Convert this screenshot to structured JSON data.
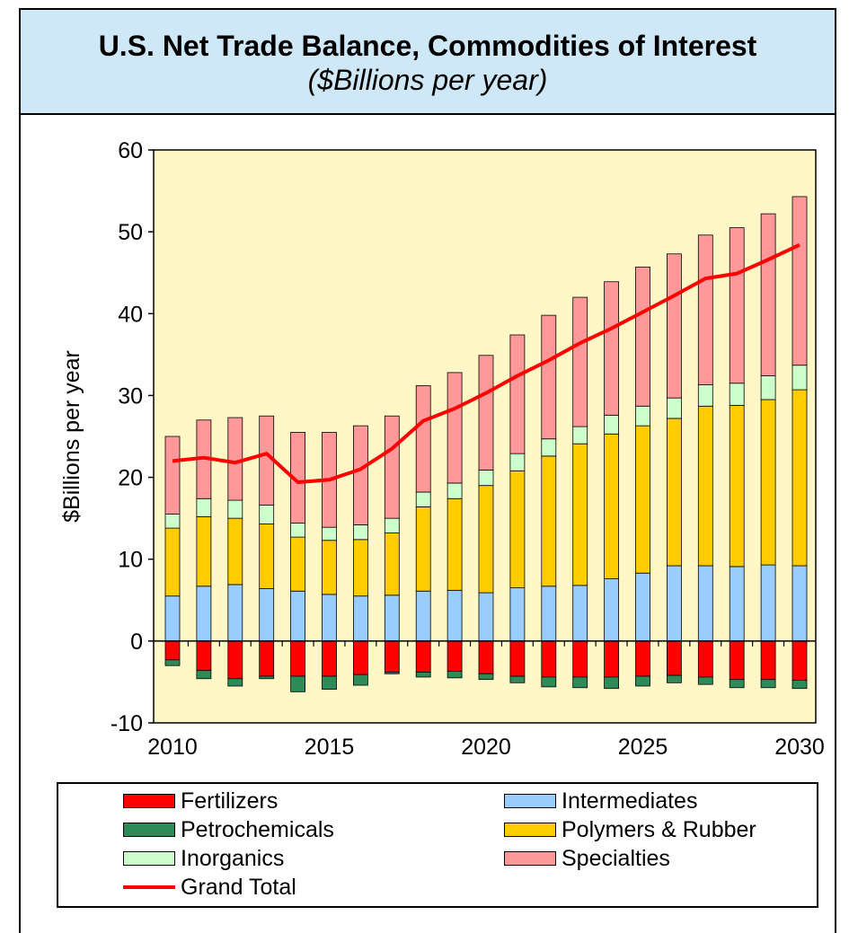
{
  "title": "U.S. Net Trade Balance, Commodities of Interest",
  "subtitle": "($Billions per year)",
  "colors": {
    "plot_bg": "#fff8c6",
    "title_bg": "#cfe8f8",
    "Fertilizers": "#ff0000",
    "Petrochemicals": "#2e8b57",
    "Inorganics": "#ccffcc",
    "Intermediates": "#99ccff",
    "Polymers & Rubber": "#ffcc00",
    "Specialties": "#ff9999",
    "Grand Total": "#ff0000"
  },
  "chart_data": {
    "type": "bar",
    "stacked": true,
    "title": "U.S. Net Trade Balance, Commodities of Interest",
    "subtitle": "($Billions per year)",
    "ylabel": "$Billions per year",
    "ylim": [
      -10,
      60
    ],
    "yticks": [
      -10,
      0,
      10,
      20,
      30,
      40,
      50,
      60
    ],
    "xticks": [
      2010,
      2015,
      2020,
      2025,
      2030
    ],
    "categories": [
      2010,
      2011,
      2012,
      2013,
      2014,
      2015,
      2016,
      2017,
      2018,
      2019,
      2020,
      2021,
      2022,
      2023,
      2024,
      2025,
      2026,
      2027,
      2028,
      2029,
      2030
    ],
    "series": [
      {
        "name": "Fertilizers",
        "values": [
          -2.3,
          -3.6,
          -4.6,
          -4.3,
          -4.3,
          -4.3,
          -4.1,
          -3.8,
          -3.8,
          -3.7,
          -4.0,
          -4.3,
          -4.4,
          -4.4,
          -4.4,
          -4.3,
          -4.2,
          -4.4,
          -4.7,
          -4.7,
          -4.8
        ]
      },
      {
        "name": "Petrochemicals",
        "values": [
          -0.7,
          -1.0,
          -0.9,
          -0.3,
          -1.9,
          -1.6,
          -1.3,
          -0.2,
          -0.6,
          -0.8,
          -0.7,
          -0.8,
          -1.2,
          -1.3,
          -1.4,
          -1.2,
          -0.9,
          -0.9,
          -1.0,
          -1.0,
          -1.0
        ]
      },
      {
        "name": "Intermediates",
        "values": [
          5.5,
          6.7,
          6.9,
          6.4,
          6.1,
          5.7,
          5.5,
          5.6,
          6.1,
          6.2,
          5.9,
          6.5,
          6.7,
          6.8,
          7.6,
          8.3,
          9.2,
          9.2,
          9.1,
          9.3,
          9.2
        ]
      },
      {
        "name": "Polymers & Rubber",
        "values": [
          8.3,
          8.5,
          8.1,
          7.9,
          6.6,
          6.6,
          6.9,
          7.6,
          10.3,
          11.2,
          13.1,
          14.3,
          15.9,
          17.3,
          17.7,
          18.0,
          18.0,
          19.5,
          19.7,
          20.2,
          21.5
        ]
      },
      {
        "name": "Inorganics",
        "values": [
          1.7,
          2.2,
          2.2,
          2.3,
          1.7,
          1.6,
          1.8,
          1.8,
          1.8,
          1.9,
          1.9,
          2.1,
          2.1,
          2.1,
          2.3,
          2.4,
          2.5,
          2.6,
          2.7,
          2.9,
          3.0
        ]
      },
      {
        "name": "Specialties",
        "values": [
          9.5,
          9.6,
          10.1,
          10.9,
          11.1,
          11.6,
          12.1,
          12.5,
          13.0,
          13.5,
          14.0,
          14.5,
          15.1,
          15.8,
          16.3,
          17.0,
          17.6,
          18.3,
          19.0,
          19.8,
          20.6
        ]
      },
      {
        "name": "Grand Total",
        "type": "line",
        "values": [
          22.0,
          22.4,
          21.8,
          22.9,
          19.4,
          19.7,
          21.0,
          23.5,
          26.9,
          28.4,
          30.3,
          32.4,
          34.3,
          36.4,
          38.2,
          40.2,
          42.2,
          44.3,
          44.9,
          46.6,
          48.4
        ]
      }
    ],
    "legend": {
      "placement": "bottom",
      "entries": [
        "Fertilizers",
        "Intermediates",
        "Petrochemicals",
        "Polymers & Rubber",
        "Inorganics",
        "Specialties",
        "Grand Total"
      ]
    },
    "grid": false
  }
}
